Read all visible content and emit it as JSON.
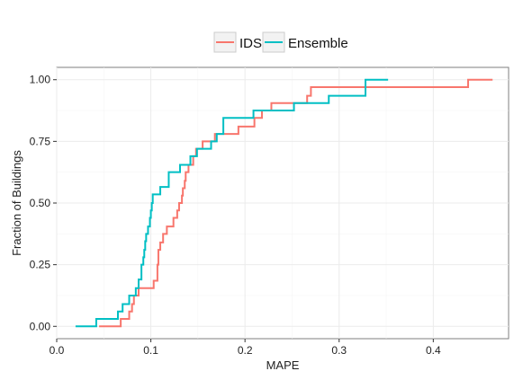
{
  "chart_data": {
    "type": "line",
    "title": "",
    "xlabel": "MAPE",
    "ylabel": "Fraction of Buildings",
    "xlim": [
      0,
      0.48
    ],
    "ylim": [
      -0.05,
      1.05
    ],
    "x_ticks": [
      0.0,
      0.1,
      0.2,
      0.3,
      0.4
    ],
    "x_tick_labels": [
      "0.0",
      "0.1",
      "0.2",
      "0.3",
      "0.4"
    ],
    "y_ticks": [
      0.0,
      0.25,
      0.5,
      0.75,
      1.0
    ],
    "y_tick_labels": [
      "0.00",
      "0.25",
      "0.50",
      "0.75",
      "1.00"
    ],
    "grid": true,
    "legend_position": "top",
    "series": [
      {
        "name": "IDS",
        "color": "#f8766d",
        "step": true,
        "points": [
          [
            0.045,
            0.0
          ],
          [
            0.068,
            0.0
          ],
          [
            0.068,
            0.03
          ],
          [
            0.077,
            0.03
          ],
          [
            0.077,
            0.06
          ],
          [
            0.08,
            0.06
          ],
          [
            0.08,
            0.09
          ],
          [
            0.082,
            0.09
          ],
          [
            0.082,
            0.125
          ],
          [
            0.087,
            0.125
          ],
          [
            0.087,
            0.155
          ],
          [
            0.103,
            0.155
          ],
          [
            0.103,
            0.185
          ],
          [
            0.107,
            0.185
          ],
          [
            0.107,
            0.25
          ],
          [
            0.108,
            0.25
          ],
          [
            0.108,
            0.31
          ],
          [
            0.11,
            0.31
          ],
          [
            0.11,
            0.34
          ],
          [
            0.113,
            0.34
          ],
          [
            0.113,
            0.375
          ],
          [
            0.117,
            0.375
          ],
          [
            0.117,
            0.405
          ],
          [
            0.124,
            0.405
          ],
          [
            0.124,
            0.44
          ],
          [
            0.128,
            0.44
          ],
          [
            0.128,
            0.47
          ],
          [
            0.13,
            0.47
          ],
          [
            0.13,
            0.5
          ],
          [
            0.133,
            0.5
          ],
          [
            0.133,
            0.53
          ],
          [
            0.134,
            0.53
          ],
          [
            0.134,
            0.56
          ],
          [
            0.136,
            0.56
          ],
          [
            0.136,
            0.59
          ],
          [
            0.137,
            0.59
          ],
          [
            0.137,
            0.625
          ],
          [
            0.14,
            0.625
          ],
          [
            0.14,
            0.655
          ],
          [
            0.145,
            0.655
          ],
          [
            0.145,
            0.69
          ],
          [
            0.148,
            0.69
          ],
          [
            0.148,
            0.72
          ],
          [
            0.155,
            0.72
          ],
          [
            0.155,
            0.75
          ],
          [
            0.168,
            0.75
          ],
          [
            0.168,
            0.78
          ],
          [
            0.193,
            0.78
          ],
          [
            0.193,
            0.81
          ],
          [
            0.21,
            0.81
          ],
          [
            0.21,
            0.845
          ],
          [
            0.218,
            0.845
          ],
          [
            0.218,
            0.875
          ],
          [
            0.228,
            0.875
          ],
          [
            0.228,
            0.905
          ],
          [
            0.266,
            0.905
          ],
          [
            0.266,
            0.935
          ],
          [
            0.27,
            0.935
          ],
          [
            0.27,
            0.97
          ],
          [
            0.437,
            0.97
          ],
          [
            0.437,
            1.0
          ],
          [
            0.463,
            1.0
          ]
        ]
      },
      {
        "name": "Ensemble",
        "color": "#00bfc4",
        "step": true,
        "points": [
          [
            0.02,
            0.0
          ],
          [
            0.042,
            0.0
          ],
          [
            0.042,
            0.03
          ],
          [
            0.065,
            0.03
          ],
          [
            0.065,
            0.06
          ],
          [
            0.07,
            0.06
          ],
          [
            0.07,
            0.09
          ],
          [
            0.077,
            0.09
          ],
          [
            0.077,
            0.125
          ],
          [
            0.084,
            0.125
          ],
          [
            0.084,
            0.155
          ],
          [
            0.087,
            0.155
          ],
          [
            0.087,
            0.19
          ],
          [
            0.09,
            0.19
          ],
          [
            0.09,
            0.25
          ],
          [
            0.092,
            0.25
          ],
          [
            0.092,
            0.28
          ],
          [
            0.093,
            0.28
          ],
          [
            0.093,
            0.31
          ],
          [
            0.094,
            0.31
          ],
          [
            0.094,
            0.345
          ],
          [
            0.095,
            0.345
          ],
          [
            0.095,
            0.375
          ],
          [
            0.097,
            0.375
          ],
          [
            0.097,
            0.405
          ],
          [
            0.099,
            0.405
          ],
          [
            0.099,
            0.44
          ],
          [
            0.1,
            0.44
          ],
          [
            0.1,
            0.47
          ],
          [
            0.101,
            0.47
          ],
          [
            0.101,
            0.5
          ],
          [
            0.102,
            0.5
          ],
          [
            0.102,
            0.535
          ],
          [
            0.11,
            0.535
          ],
          [
            0.11,
            0.565
          ],
          [
            0.119,
            0.565
          ],
          [
            0.119,
            0.625
          ],
          [
            0.131,
            0.625
          ],
          [
            0.131,
            0.655
          ],
          [
            0.142,
            0.655
          ],
          [
            0.142,
            0.69
          ],
          [
            0.149,
            0.69
          ],
          [
            0.149,
            0.72
          ],
          [
            0.164,
            0.72
          ],
          [
            0.164,
            0.75
          ],
          [
            0.17,
            0.75
          ],
          [
            0.17,
            0.78
          ],
          [
            0.177,
            0.78
          ],
          [
            0.177,
            0.845
          ],
          [
            0.209,
            0.845
          ],
          [
            0.209,
            0.875
          ],
          [
            0.252,
            0.875
          ],
          [
            0.252,
            0.905
          ],
          [
            0.289,
            0.905
          ],
          [
            0.289,
            0.935
          ],
          [
            0.328,
            0.935
          ],
          [
            0.328,
            1.0
          ],
          [
            0.352,
            1.0
          ]
        ]
      }
    ]
  }
}
